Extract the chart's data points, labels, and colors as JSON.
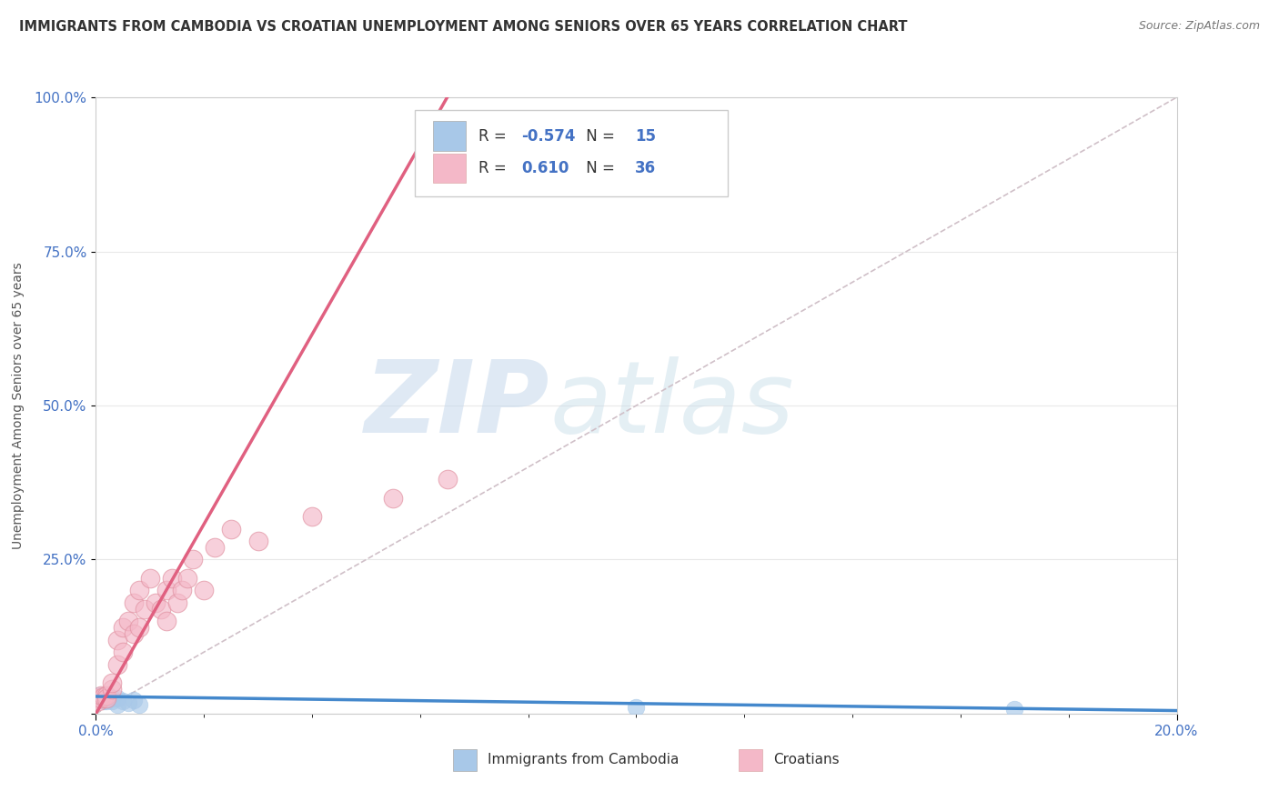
{
  "title": "IMMIGRANTS FROM CAMBODIA VS CROATIAN UNEMPLOYMENT AMONG SENIORS OVER 65 YEARS CORRELATION CHART",
  "source": "Source: ZipAtlas.com",
  "ylabel": "Unemployment Among Seniors over 65 years",
  "xlim": [
    0.0,
    0.2
  ],
  "ylim": [
    0.0,
    1.0
  ],
  "watermark_zip": "ZIP",
  "watermark_atlas": "atlas",
  "legend_R1": "-0.574",
  "legend_N1": "15",
  "legend_R2": "0.610",
  "legend_N2": "36",
  "blue_color": "#a8c8e8",
  "pink_color": "#f4b8c8",
  "blue_line_color": "#4488cc",
  "pink_line_color": "#e06080",
  "diag_color": "#d0c0c8",
  "background_color": "#ffffff",
  "grid_color": "#e8e8e8",
  "cambodia_x": [
    0.0005,
    0.001,
    0.0015,
    0.002,
    0.002,
    0.003,
    0.003,
    0.004,
    0.004,
    0.005,
    0.006,
    0.007,
    0.008,
    0.1,
    0.17
  ],
  "cambodia_y": [
    0.03,
    0.025,
    0.02,
    0.03,
    0.02,
    0.025,
    0.02,
    0.025,
    0.015,
    0.02,
    0.018,
    0.022,
    0.015,
    0.01,
    0.008
  ],
  "croatian_x": [
    0.0003,
    0.0005,
    0.001,
    0.001,
    0.0015,
    0.002,
    0.002,
    0.003,
    0.003,
    0.004,
    0.004,
    0.005,
    0.005,
    0.006,
    0.007,
    0.007,
    0.008,
    0.008,
    0.009,
    0.01,
    0.011,
    0.012,
    0.013,
    0.013,
    0.014,
    0.015,
    0.016,
    0.017,
    0.018,
    0.02,
    0.022,
    0.025,
    0.03,
    0.04,
    0.055,
    0.065
  ],
  "croatian_y": [
    0.025,
    0.02,
    0.025,
    0.03,
    0.028,
    0.03,
    0.025,
    0.04,
    0.05,
    0.08,
    0.12,
    0.1,
    0.14,
    0.15,
    0.13,
    0.18,
    0.14,
    0.2,
    0.17,
    0.22,
    0.18,
    0.17,
    0.2,
    0.15,
    0.22,
    0.18,
    0.2,
    0.22,
    0.25,
    0.2,
    0.27,
    0.3,
    0.28,
    0.32,
    0.35,
    0.38
  ],
  "blue_trend_x": [
    0.0,
    0.2
  ],
  "blue_trend_y": [
    0.028,
    0.005
  ],
  "pink_trend_x": [
    0.0,
    0.065
  ],
  "pink_trend_y": [
    0.0,
    1.0
  ]
}
